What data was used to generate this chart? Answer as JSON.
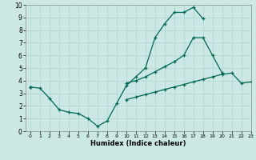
{
  "xlabel": "Humidex (Indice chaleur)",
  "bg_color": "#cce8e4",
  "grid_color": "#aad4cc",
  "line_color": "#006655",
  "xlim": [
    -0.5,
    23
  ],
  "ylim": [
    0,
    10
  ],
  "xticks": [
    0,
    1,
    2,
    3,
    4,
    5,
    6,
    7,
    8,
    9,
    10,
    11,
    12,
    13,
    14,
    15,
    16,
    17,
    18,
    19,
    20,
    21,
    22,
    23
  ],
  "yticks": [
    0,
    1,
    2,
    3,
    4,
    5,
    6,
    7,
    8,
    9,
    10
  ],
  "line1_x": [
    0,
    1,
    2,
    3,
    4,
    5,
    6,
    7,
    8,
    9,
    10,
    11,
    12,
    13,
    14,
    15,
    16,
    17,
    18,
    19,
    20,
    21,
    22,
    23
  ],
  "line1_y": [
    3.5,
    3.4,
    2.6,
    1.7,
    1.5,
    1.4,
    1.0,
    0.4,
    0.8,
    2.2,
    3.6,
    4.3,
    5.0,
    7.4,
    8.5,
    9.4,
    9.4,
    9.8,
    8.9,
    null,
    null,
    null,
    null,
    null
  ],
  "line2_x": [
    0,
    1,
    2,
    3,
    4,
    5,
    6,
    7,
    8,
    9,
    10,
    11,
    12,
    13,
    14,
    15,
    16,
    17,
    18,
    19,
    20,
    21,
    22,
    23
  ],
  "line2_y": [
    3.5,
    null,
    null,
    null,
    null,
    null,
    null,
    null,
    null,
    null,
    3.8,
    4.0,
    4.3,
    4.7,
    5.1,
    5.5,
    6.0,
    7.4,
    7.4,
    6.0,
    4.6,
    null,
    null,
    null
  ],
  "line3_x": [
    0,
    1,
    2,
    3,
    4,
    5,
    6,
    7,
    8,
    9,
    10,
    11,
    12,
    13,
    14,
    15,
    16,
    17,
    18,
    19,
    20,
    21,
    22,
    23
  ],
  "line3_y": [
    3.5,
    null,
    null,
    null,
    null,
    null,
    null,
    null,
    null,
    null,
    2.5,
    2.7,
    2.9,
    3.1,
    3.3,
    3.5,
    3.7,
    3.9,
    4.1,
    4.3,
    4.5,
    4.6,
    3.8,
    3.9
  ]
}
